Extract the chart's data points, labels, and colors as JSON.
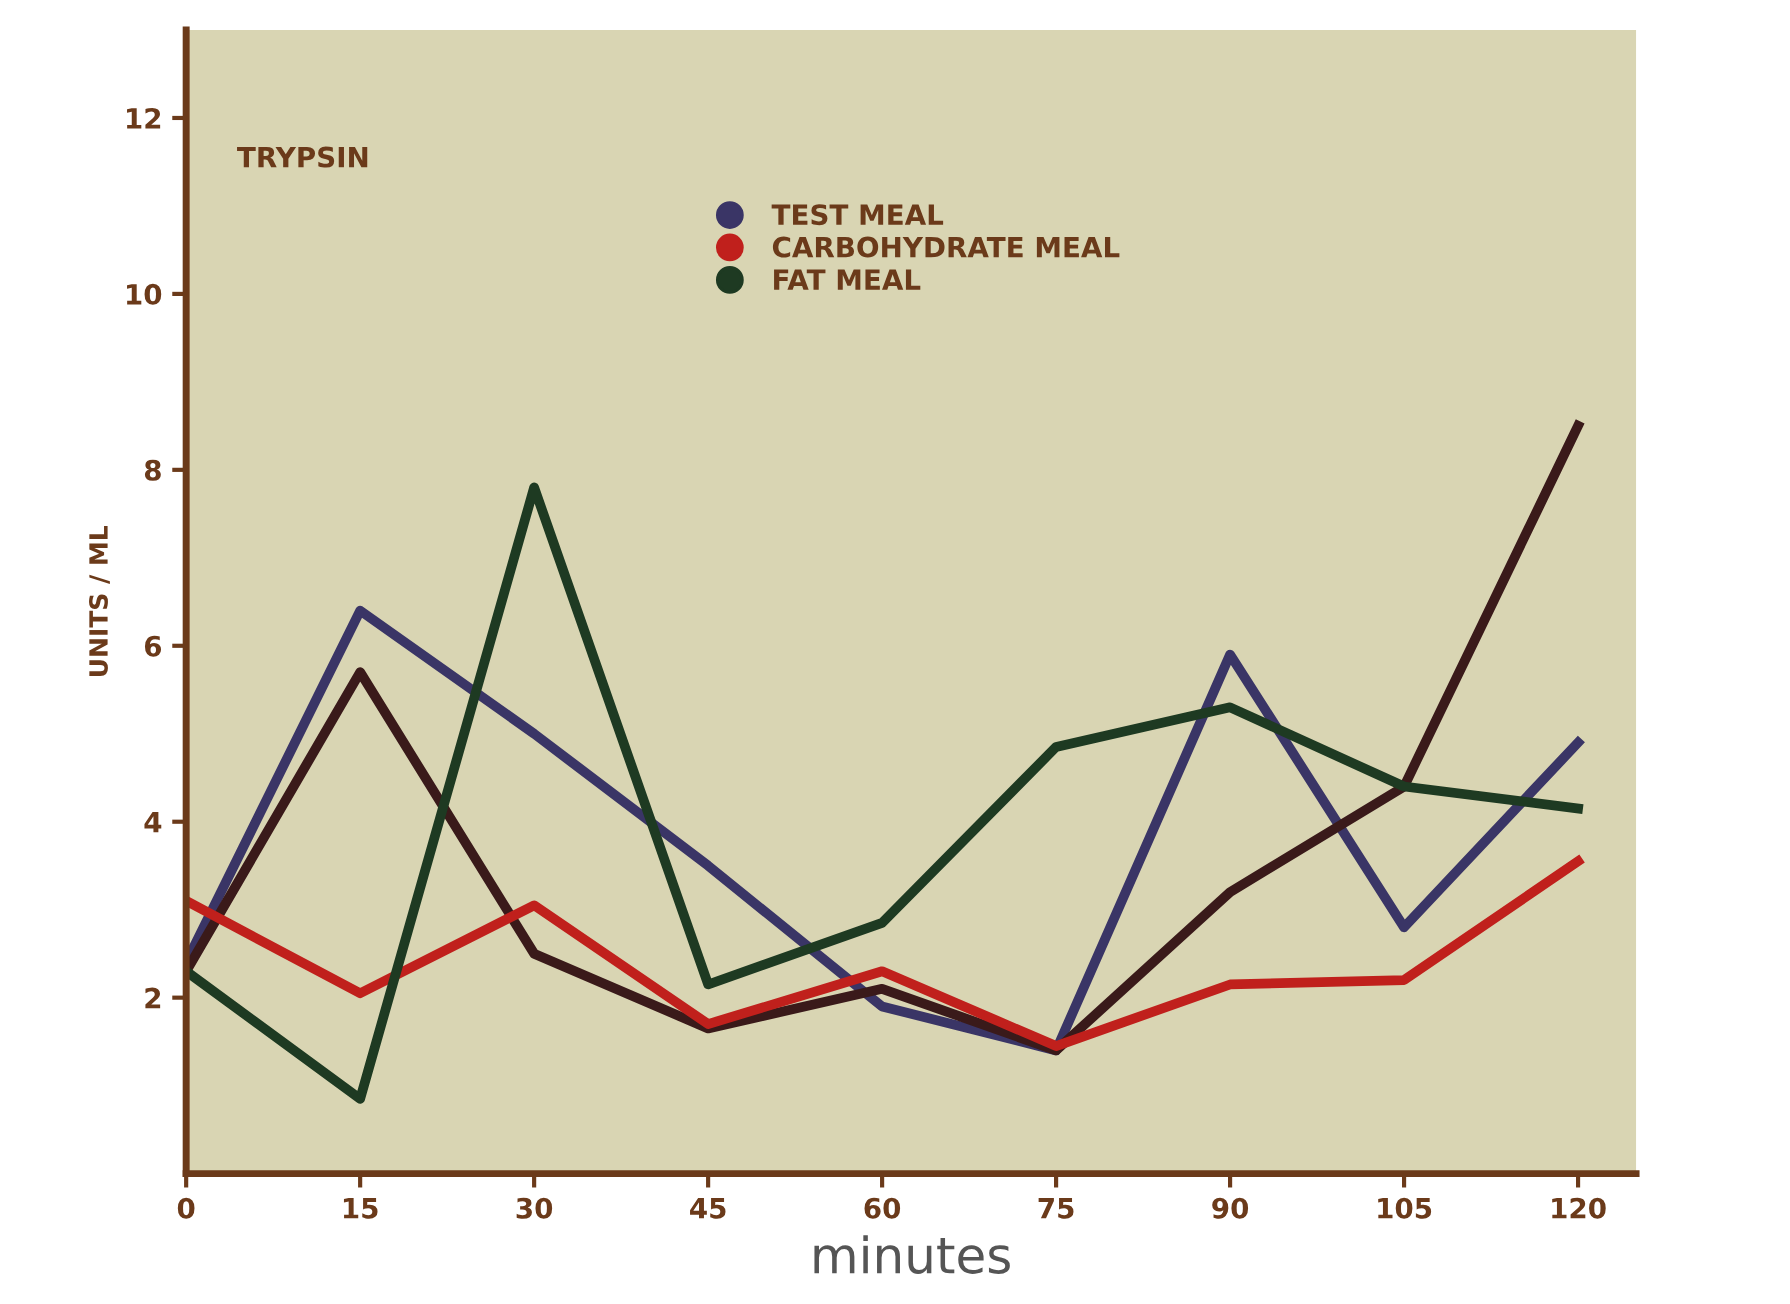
{
  "chart_data": {
    "type": "line",
    "xlabel": "minutes",
    "ylabel": "UNITS / ML",
    "annotations": [
      "TRYPSIN"
    ],
    "x": [
      0,
      15,
      30,
      45,
      60,
      75,
      90,
      105,
      120
    ],
    "series": [
      {
        "name": "TEST MEAL",
        "color": "#3a3566",
        "values": [
          2.4,
          6.4,
          5.0,
          3.5,
          1.9,
          1.4,
          5.9,
          2.8,
          4.9
        ]
      },
      {
        "color": "#3a1a1a",
        "values": [
          2.3,
          5.7,
          2.5,
          1.65,
          2.1,
          1.4,
          3.2,
          4.4,
          8.5
        ]
      },
      {
        "name": "CARBOHYDRATE MEAL",
        "color": "#c0201c",
        "values": [
          3.1,
          2.05,
          3.05,
          1.7,
          2.3,
          1.45,
          2.15,
          2.2,
          3.55
        ]
      },
      {
        "name": "FAT MEAL",
        "color": "#1e3a22",
        "values": [
          2.3,
          0.85,
          7.8,
          2.15,
          2.85,
          4.85,
          5.3,
          4.4,
          4.15
        ]
      }
    ],
    "xlim": [
      0,
      125
    ],
    "ylim": [
      0,
      13
    ],
    "xticks": [
      0,
      15,
      30,
      45,
      60,
      75,
      90,
      105,
      120
    ],
    "yticks": [
      2,
      4,
      6,
      8,
      10,
      12
    ],
    "legend": "top",
    "marker": "none",
    "line_style": "solid",
    "grid": false
  }
}
